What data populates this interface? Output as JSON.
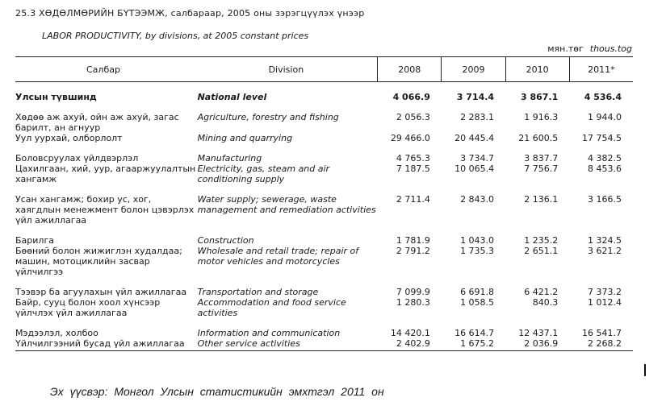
{
  "title": "25.3 ХӨДӨЛМӨРИЙН БҮТЭЭМЖ, салбараар, 2005 оны зэрэгцүүлэх үнээр",
  "subtitle": "LABOR PRODUCTIVITY, by divisions, at 2005 constant prices",
  "units": {
    "mn": "мян.төг",
    "en": "thous.tog"
  },
  "headers": {
    "mn": "Салбар",
    "en": "Division",
    "years": [
      "2008",
      "2009",
      "2010",
      "2011*"
    ]
  },
  "rows": [
    {
      "mn": "Улсын түвшинд",
      "en": "National level",
      "values": [
        "4 066.9",
        "3 714.4",
        "3 867.1",
        "4 536.4"
      ]
    },
    {
      "mn": "Хөдөө аж ахуй, ойн аж ахуй, загас барилт, ан агнуур",
      "en": "Agriculture, forestry and fishing",
      "values": [
        "2 056.3",
        "2 283.1",
        "1 916.3",
        "1 944.0"
      ]
    },
    {
      "mn": "Уул уурхай, олборлолт",
      "en": "Mining and quarrying",
      "values": [
        "29 466.0",
        "20 445.4",
        "21 600.5",
        "17 754.5"
      ]
    },
    {
      "mn": "Боловсруулах үйлдвэрлэл",
      "en": "Manufacturing",
      "values": [
        "4 765.3",
        "3 734.7",
        "3 837.7",
        "4 382.5"
      ]
    },
    {
      "mn": "Цахилгаан, хий, уур, агааржуулалтын хангамж",
      "en": "Electricity, gas, steam and air conditioning supply",
      "values": [
        "7 187.5",
        "10 065.4",
        "7 756.7",
        "8 453.6"
      ]
    },
    {
      "mn": "Усан хангамж; бохир ус, хог, хаягдлын менежмент болон цэвэрлэх үйл ажиллагаа",
      "en": "Water supply; sewerage, waste management and remediation activities",
      "values": [
        "2 711.4",
        "2 843.0",
        "2 136.1",
        "3 166.5"
      ]
    },
    {
      "mn": "Барилга",
      "en": "Construction",
      "values": [
        "1 781.9",
        "1 043.0",
        "1 235.2",
        "1 324.5"
      ]
    },
    {
      "mn": "Бөөний болон жижиглэн худалдаа; машин, мотоциклийн засвар үйлчилгээ",
      "en": "Wholesale and retail trade; repair of motor vehicles and motorcycles",
      "values": [
        "2 791.2",
        "1 735.3",
        "2 651.1",
        "3 621.2"
      ]
    },
    {
      "mn": "Тээвэр ба агуулахын үйл ажиллагаа",
      "en": "Transportation and storage",
      "values": [
        "7 099.9",
        "6 691.8",
        "6 421.2",
        "7 373.2"
      ]
    },
    {
      "mn": "Байр, сууц болон хоол хүнсээр үйлчлэх үйл ажиллагаа",
      "en": "Accommodation and food service activities",
      "values": [
        "1 280.3",
        "1 058.5",
        "840.3",
        "1 012.4"
      ]
    },
    {
      "mn": "Мэдээлэл, холбоо",
      "en": "Information and communication",
      "values": [
        "14 420.1",
        "16 614.7",
        "12 437.1",
        "16 541.7"
      ]
    },
    {
      "mn": "Үйлчилгээний бусад үйл ажиллагаа",
      "en": "Other service activities",
      "values": [
        "2 402.9",
        "1 675.2",
        "2 036.9",
        "2 268.2"
      ]
    }
  ],
  "source": "Эх үүсвэр: Монгол Улсын статистикийн эмхтгэл 2011 он"
}
